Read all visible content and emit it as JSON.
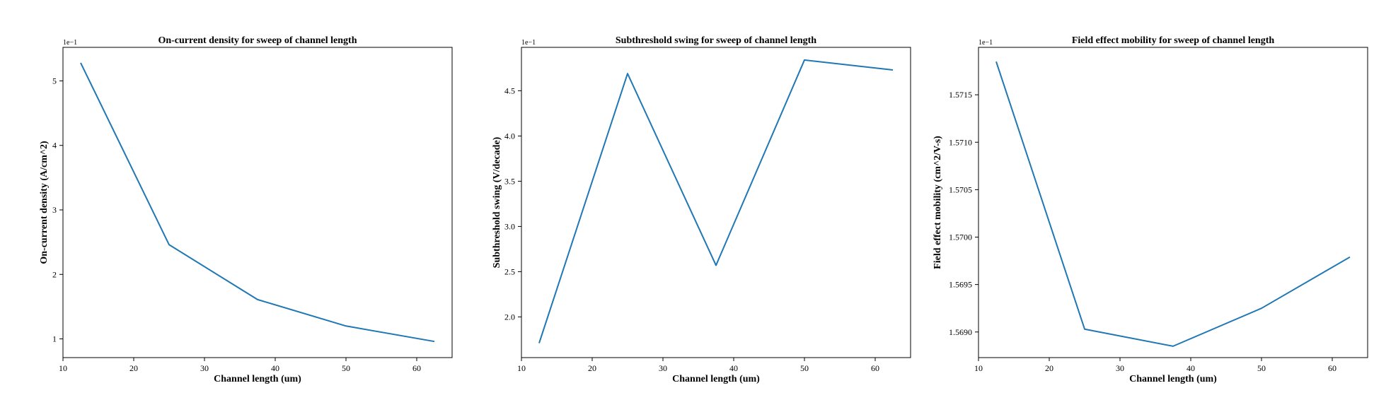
{
  "chart_data": [
    {
      "type": "line",
      "title": "On-current density for sweep of channel length",
      "xlabel": "Channel length (um)",
      "ylabel": "On-current density (A/cm^2)",
      "y_offset_label": "1e−1",
      "x": [
        12.5,
        25,
        37.5,
        50,
        62.5
      ],
      "series": [
        {
          "values": [
            5.28,
            2.46,
            1.61,
            1.2,
            0.96
          ]
        }
      ],
      "xlim": [
        10,
        65
      ],
      "ylim": [
        0.71,
        5.52
      ],
      "xticks": [
        10,
        20,
        30,
        40,
        50,
        60
      ],
      "yticks": [
        1,
        2,
        3,
        4,
        5
      ],
      "xtick_labels": [
        "10",
        "20",
        "30",
        "40",
        "50",
        "60"
      ],
      "ytick_labels": [
        "1",
        "2",
        "3",
        "4",
        "5"
      ],
      "grid": false,
      "line_color": "#1f77b4"
    },
    {
      "type": "line",
      "title": "Subthreshold swing for sweep of channel length",
      "xlabel": "Channel length (um)",
      "ylabel": "Subthreshold swing (V/decade)",
      "y_offset_label": "1e−1",
      "x": [
        12.5,
        25,
        37.5,
        50,
        62.5
      ],
      "series": [
        {
          "values": [
            1.71,
            4.69,
            2.57,
            4.84,
            4.73
          ]
        }
      ],
      "xlim": [
        10,
        65
      ],
      "ylim": [
        1.55,
        4.98
      ],
      "xticks": [
        10,
        20,
        30,
        40,
        50,
        60
      ],
      "yticks": [
        2.0,
        2.5,
        3.0,
        3.5,
        4.0,
        4.5
      ],
      "xtick_labels": [
        "10",
        "20",
        "30",
        "40",
        "50",
        "60"
      ],
      "ytick_labels": [
        "2.0",
        "2.5",
        "3.0",
        "3.5",
        "4.0",
        "4.5"
      ],
      "grid": false,
      "line_color": "#1f77b4"
    },
    {
      "type": "line",
      "title": "Field effect mobility for sweep of channel length",
      "xlabel": "Channel length (um)",
      "ylabel": "Field effect mobility (cm^2/V-s)",
      "y_offset_label": "1e−1",
      "x": [
        12.5,
        25,
        37.5,
        50,
        62.5
      ],
      "series": [
        {
          "values": [
            1.57185,
            1.56903,
            1.56885,
            1.56925,
            1.56979
          ]
        }
      ],
      "xlim": [
        10,
        65
      ],
      "ylim": [
        1.56873,
        1.572
      ],
      "xticks": [
        10,
        20,
        30,
        40,
        50,
        60
      ],
      "yticks": [
        1.569,
        1.5695,
        1.57,
        1.5705,
        1.571,
        1.5715
      ],
      "xtick_labels": [
        "10",
        "20",
        "30",
        "40",
        "50",
        "60"
      ],
      "ytick_labels": [
        "1.5690",
        "1.5695",
        "1.5700",
        "1.5705",
        "1.5710",
        "1.5715"
      ],
      "grid": false,
      "line_color": "#1f77b4"
    }
  ]
}
